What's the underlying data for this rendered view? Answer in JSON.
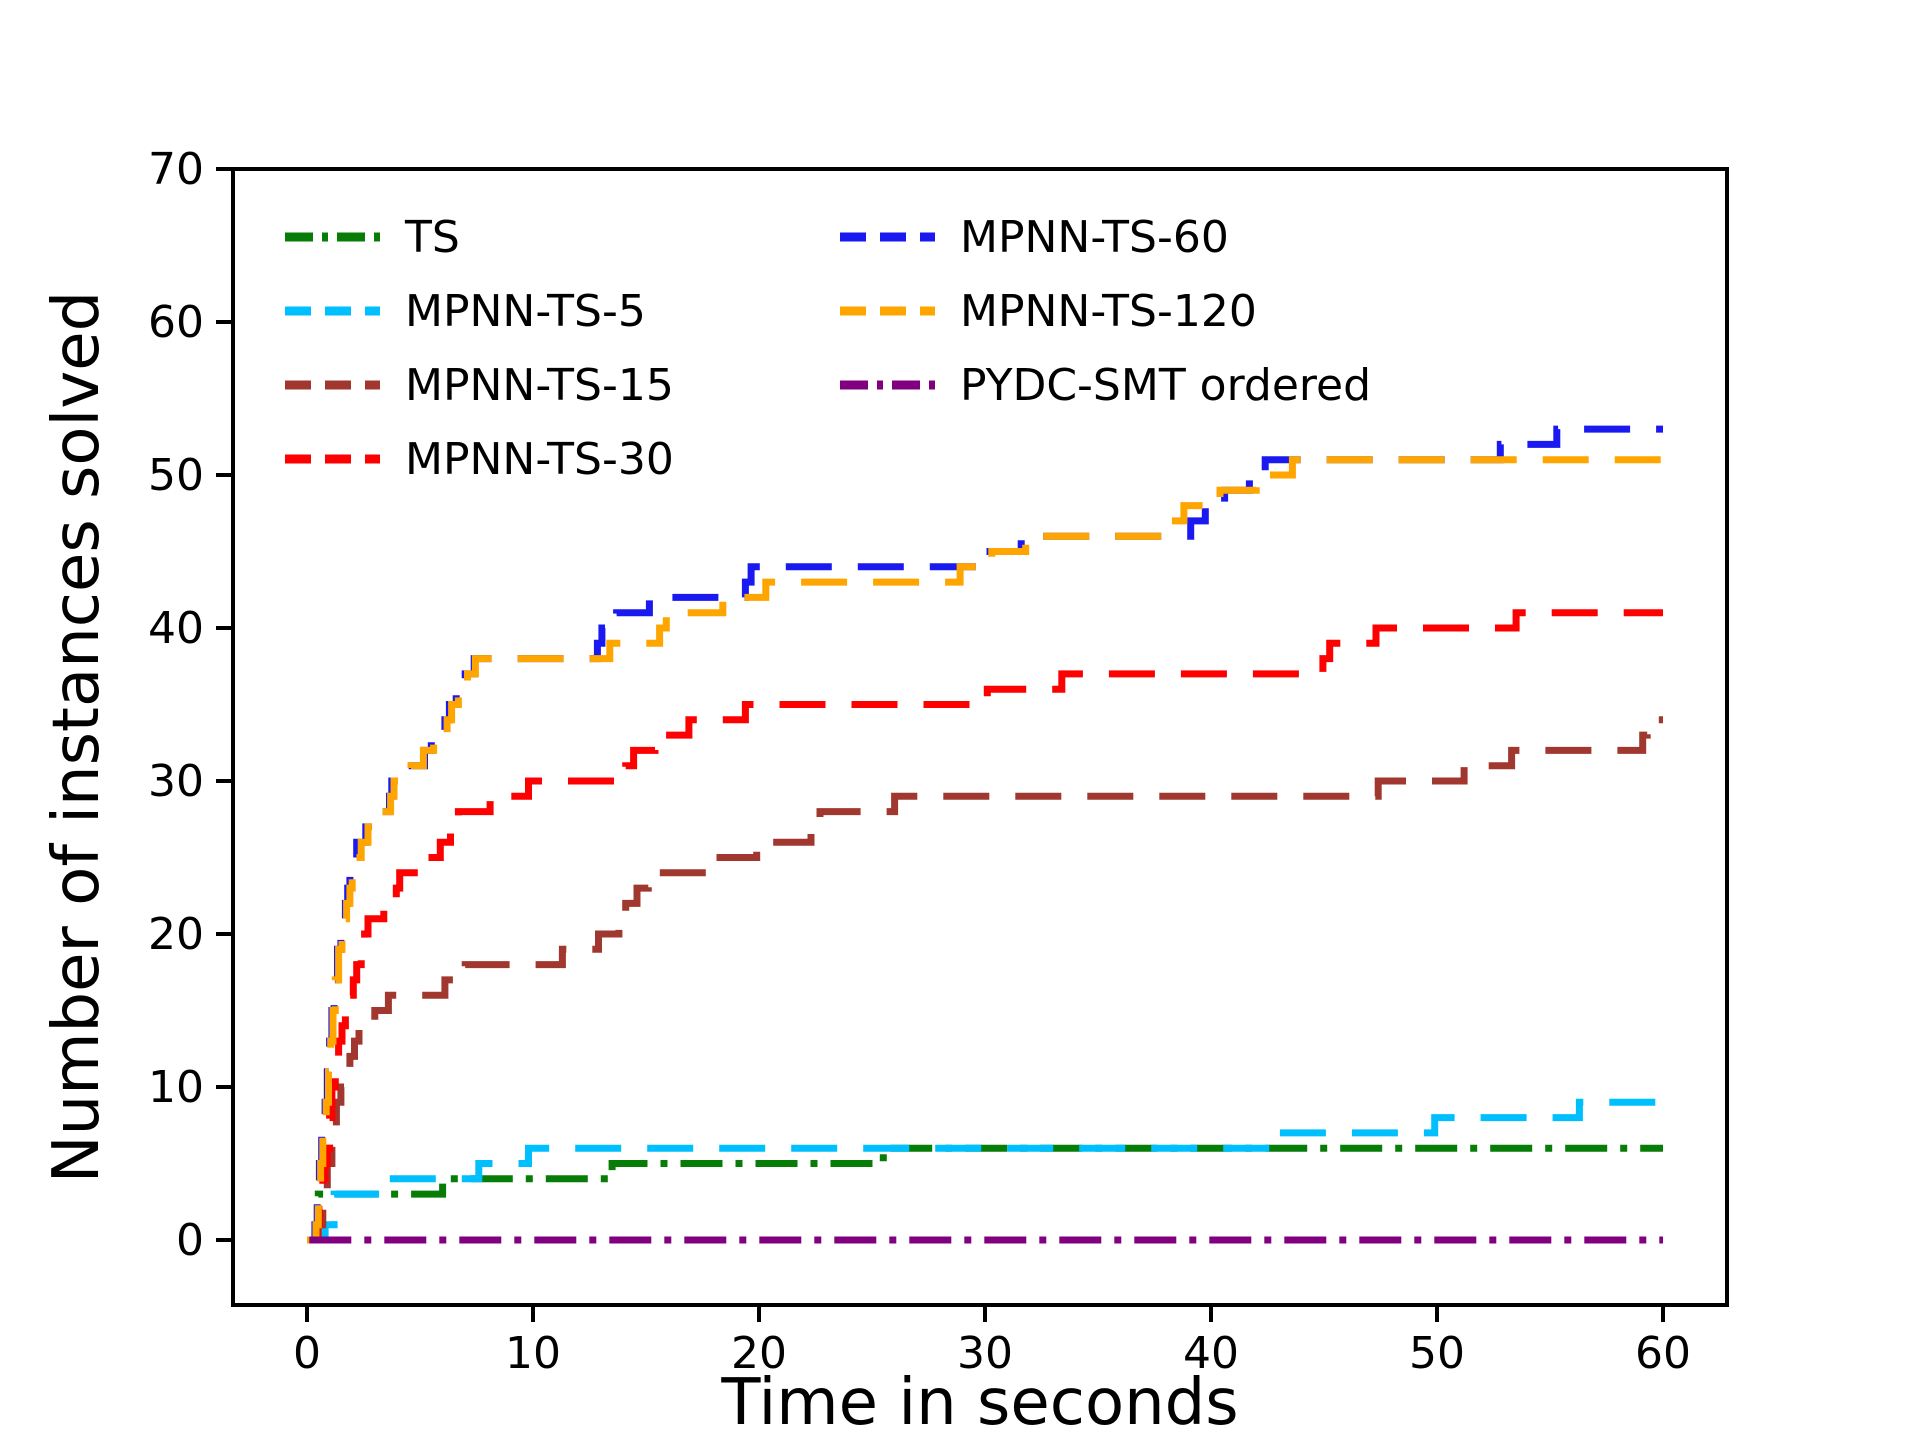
{
  "figure": {
    "background": "#ffffff"
  },
  "axes": {
    "xlabel": "Time in seconds",
    "ylabel": "Number of instances solved",
    "x_tick_labels": [
      "0",
      "10",
      "20",
      "30",
      "40",
      "50",
      "60"
    ],
    "y_tick_labels": [
      "0",
      "10",
      "20",
      "30",
      "40",
      "50",
      "60",
      "70"
    ],
    "x_ticks": [
      0,
      10,
      20,
      30,
      40,
      50,
      60
    ],
    "y_ticks": [
      0,
      10,
      20,
      30,
      40,
      50,
      60,
      70
    ]
  },
  "legend": {
    "columns": [
      [
        "TS",
        "MPNN-TS-5",
        "MPNN-TS-15",
        "MPNN-TS-30"
      ],
      [
        "MPNN-TS-60",
        "MPNN-TS-120",
        "PYDC-SMT ordered"
      ]
    ]
  },
  "chart_data": {
    "type": "line",
    "subtype": "step-post-cumulative",
    "title": "",
    "xlabel": "Time in seconds",
    "ylabel": "Number of instances solved",
    "xlim": [
      -3.3,
      62.8
    ],
    "ylim": [
      -4.3,
      70
    ],
    "x_end": 60,
    "grid": false,
    "legend_position": "upper left, two columns, no frame",
    "series": [
      {
        "name": "TS",
        "color": "#077d07",
        "dash": "dashdot",
        "points": [
          [
            0,
            0
          ],
          [
            0.4,
            1
          ],
          [
            0.5,
            3
          ],
          [
            6.0,
            4
          ],
          [
            13.5,
            5
          ],
          [
            25.5,
            6
          ]
        ]
      },
      {
        "name": "MPNN-TS-5",
        "color": "#00BFFF",
        "dash": "dashed",
        "points": [
          [
            0,
            0
          ],
          [
            0.8,
            1
          ],
          [
            1.2,
            3
          ],
          [
            3.3,
            4
          ],
          [
            7.6,
            5
          ],
          [
            9.8,
            6
          ],
          [
            43.0,
            7
          ],
          [
            49.9,
            8
          ],
          [
            56.3,
            9
          ]
        ]
      },
      {
        "name": "MPNN-TS-15",
        "color": "#A0382F",
        "dash": "dashed",
        "points": [
          [
            0,
            0
          ],
          [
            0.5,
            1
          ],
          [
            0.7,
            3
          ],
          [
            0.9,
            5
          ],
          [
            1.1,
            7
          ],
          [
            1.3,
            9
          ],
          [
            1.5,
            10
          ],
          [
            1.7,
            11
          ],
          [
            1.9,
            12
          ],
          [
            2.1,
            13
          ],
          [
            2.3,
            14
          ],
          [
            3.0,
            15
          ],
          [
            3.6,
            16
          ],
          [
            6.1,
            17
          ],
          [
            7.0,
            18
          ],
          [
            11.3,
            19
          ],
          [
            12.9,
            20
          ],
          [
            13.8,
            21
          ],
          [
            14.1,
            22
          ],
          [
            14.6,
            23
          ],
          [
            15.1,
            24
          ],
          [
            17.8,
            25
          ],
          [
            19.9,
            26
          ],
          [
            22.3,
            27
          ],
          [
            22.7,
            28
          ],
          [
            26.0,
            29
          ],
          [
            47.4,
            30
          ],
          [
            51.2,
            31
          ],
          [
            53.3,
            32
          ],
          [
            59.1,
            33
          ],
          [
            59.3,
            34
          ]
        ]
      },
      {
        "name": "MPNN-TS-30",
        "color": "#FF0000",
        "dash": "dashed",
        "points": [
          [
            0,
            0
          ],
          [
            0.45,
            1
          ],
          [
            0.55,
            2
          ],
          [
            0.7,
            4
          ],
          [
            0.8,
            5
          ],
          [
            0.9,
            6
          ],
          [
            1.0,
            8
          ],
          [
            1.1,
            10
          ],
          [
            1.25,
            12
          ],
          [
            1.4,
            13
          ],
          [
            1.55,
            14
          ],
          [
            1.7,
            15
          ],
          [
            1.9,
            16
          ],
          [
            2.05,
            17
          ],
          [
            2.2,
            18
          ],
          [
            2.4,
            19
          ],
          [
            2.55,
            20
          ],
          [
            2.7,
            21
          ],
          [
            3.4,
            22
          ],
          [
            3.95,
            23
          ],
          [
            4.1,
            24
          ],
          [
            5.1,
            25
          ],
          [
            5.9,
            26
          ],
          [
            6.35,
            27
          ],
          [
            6.7,
            28
          ],
          [
            8.1,
            29
          ],
          [
            9.8,
            30
          ],
          [
            14.1,
            31
          ],
          [
            14.45,
            32
          ],
          [
            15.4,
            33
          ],
          [
            16.9,
            34
          ],
          [
            19.4,
            35
          ],
          [
            30.1,
            36
          ],
          [
            33.4,
            37
          ],
          [
            44.95,
            38
          ],
          [
            45.25,
            39
          ],
          [
            47.3,
            40
          ],
          [
            53.5,
            41
          ]
        ]
      },
      {
        "name": "MPNN-TS-60",
        "color": "#1A1AF0",
        "dash": "dashed",
        "points": [
          [
            0,
            0
          ],
          [
            0.35,
            1
          ],
          [
            0.45,
            3
          ],
          [
            0.55,
            5
          ],
          [
            0.65,
            7
          ],
          [
            0.8,
            9
          ],
          [
            0.9,
            11
          ],
          [
            1.0,
            13
          ],
          [
            1.1,
            15
          ],
          [
            1.2,
            17
          ],
          [
            1.35,
            19
          ],
          [
            1.5,
            20
          ],
          [
            1.6,
            21
          ],
          [
            1.7,
            22
          ],
          [
            1.8,
            23
          ],
          [
            1.9,
            24
          ],
          [
            2.0,
            25
          ],
          [
            2.2,
            26
          ],
          [
            2.6,
            27
          ],
          [
            3.1,
            28
          ],
          [
            3.65,
            29
          ],
          [
            3.75,
            30
          ],
          [
            4.5,
            31
          ],
          [
            5.2,
            32
          ],
          [
            5.5,
            33
          ],
          [
            6.1,
            34
          ],
          [
            6.3,
            35
          ],
          [
            6.6,
            36
          ],
          [
            7.0,
            37
          ],
          [
            7.4,
            38
          ],
          [
            12.85,
            39
          ],
          [
            13.05,
            40
          ],
          [
            13.7,
            41
          ],
          [
            15.15,
            42
          ],
          [
            19.4,
            43
          ],
          [
            19.65,
            44
          ],
          [
            30.0,
            45
          ],
          [
            31.6,
            46
          ],
          [
            39.1,
            47
          ],
          [
            39.75,
            48
          ],
          [
            40.6,
            49
          ],
          [
            41.7,
            50
          ],
          [
            42.4,
            51
          ],
          [
            52.8,
            52
          ],
          [
            55.3,
            53
          ]
        ]
      },
      {
        "name": "MPNN-TS-120",
        "color": "#FFA500",
        "dash": "dashed",
        "points": [
          [
            0,
            0
          ],
          [
            0.4,
            1
          ],
          [
            0.5,
            3
          ],
          [
            0.6,
            5
          ],
          [
            0.7,
            7
          ],
          [
            0.85,
            9
          ],
          [
            0.95,
            11
          ],
          [
            1.05,
            13
          ],
          [
            1.15,
            15
          ],
          [
            1.25,
            17
          ],
          [
            1.4,
            19
          ],
          [
            1.55,
            20
          ],
          [
            1.65,
            21
          ],
          [
            1.75,
            22
          ],
          [
            1.9,
            23
          ],
          [
            2.0,
            24
          ],
          [
            2.15,
            25
          ],
          [
            2.4,
            26
          ],
          [
            2.7,
            27
          ],
          [
            3.2,
            28
          ],
          [
            3.7,
            29
          ],
          [
            3.85,
            30
          ],
          [
            4.6,
            31
          ],
          [
            5.15,
            32
          ],
          [
            5.6,
            33
          ],
          [
            6.2,
            34
          ],
          [
            6.4,
            35
          ],
          [
            6.7,
            36
          ],
          [
            7.1,
            37
          ],
          [
            7.45,
            38
          ],
          [
            13.4,
            39
          ],
          [
            15.6,
            40
          ],
          [
            15.9,
            41
          ],
          [
            18.4,
            42
          ],
          [
            20.3,
            43
          ],
          [
            28.9,
            44
          ],
          [
            30.3,
            45
          ],
          [
            31.8,
            46
          ],
          [
            37.9,
            47
          ],
          [
            38.8,
            48
          ],
          [
            40.4,
            49
          ],
          [
            42.0,
            50
          ],
          [
            43.6,
            51
          ]
        ]
      },
      {
        "name": "PYDC-SMT ordered",
        "color": "#800080",
        "dash": "dashdot",
        "points": [
          [
            0.1,
            0
          ]
        ]
      }
    ]
  }
}
